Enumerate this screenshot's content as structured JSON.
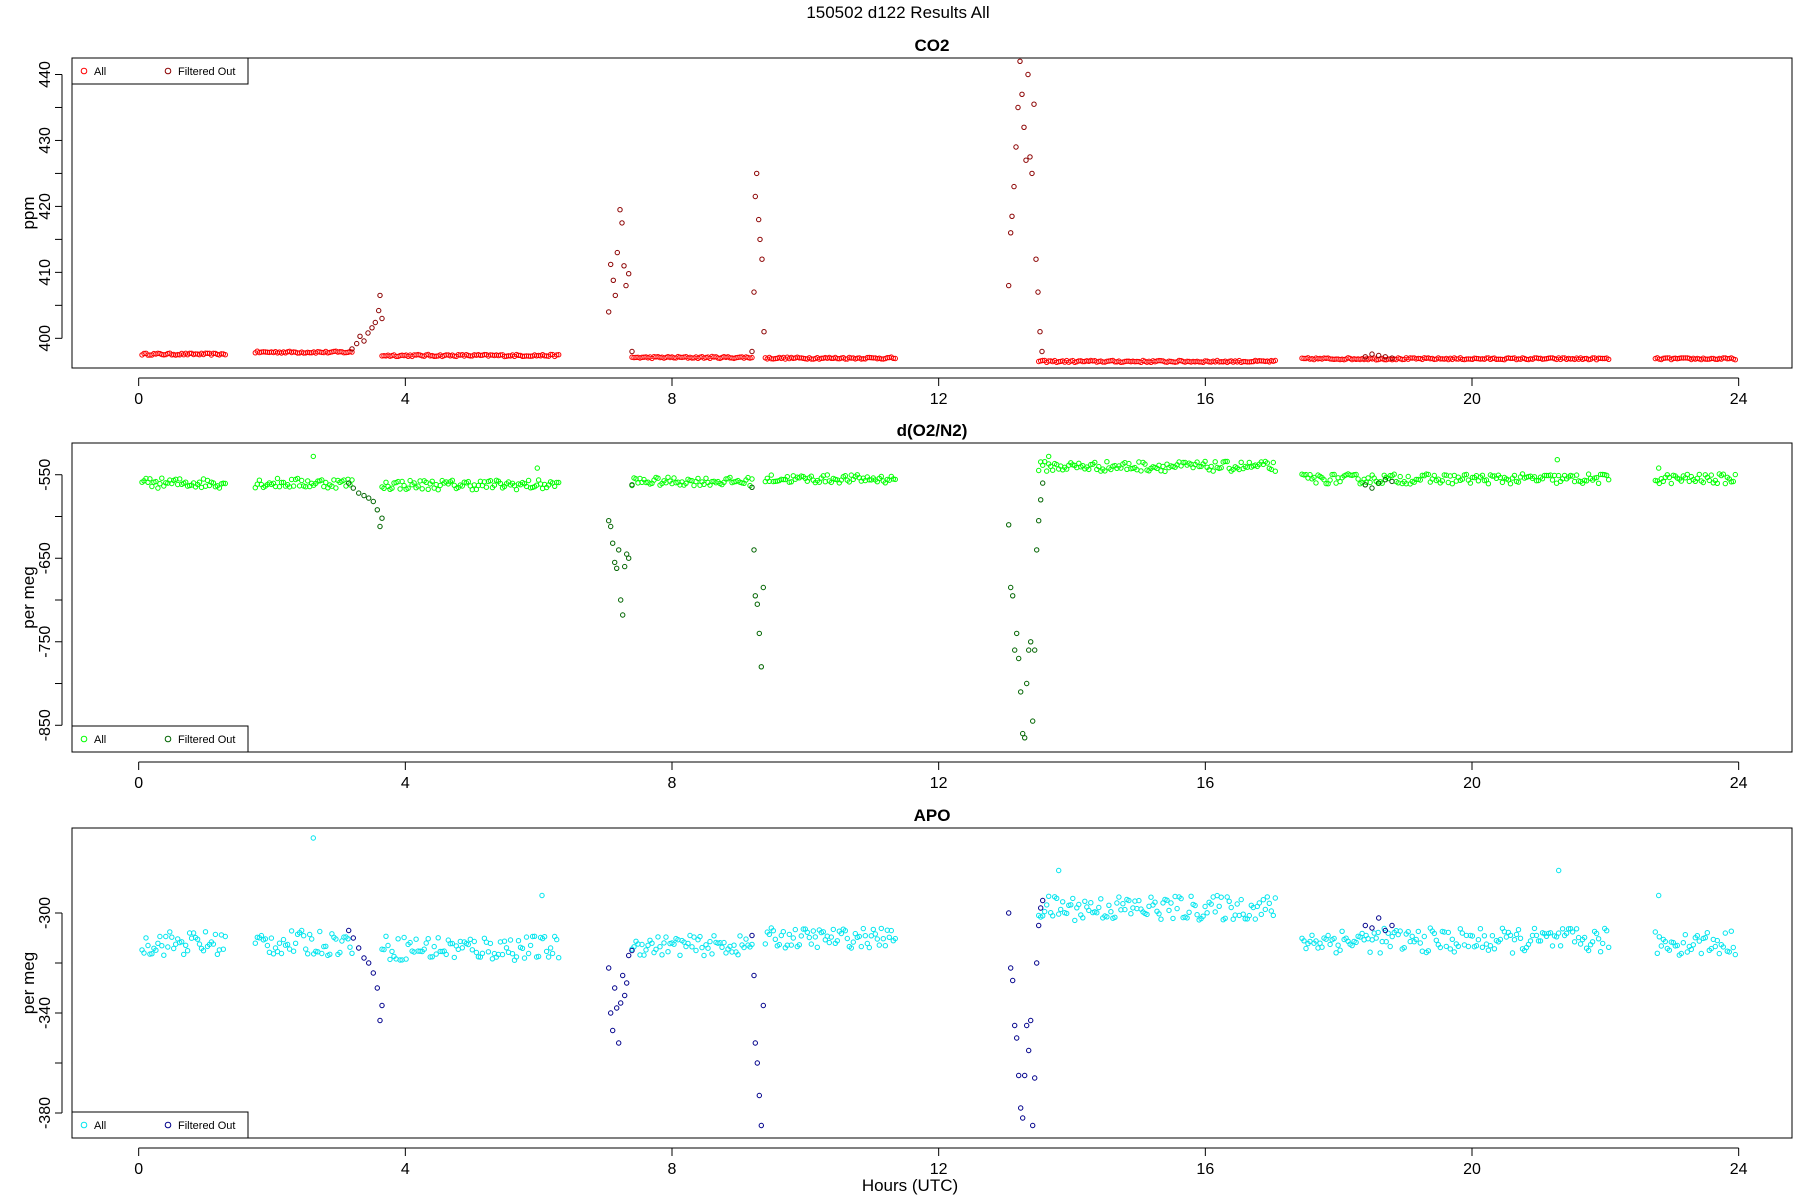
{
  "page_title": "150502   d122   Results All",
  "x_axis_label": "Hours (UTC)",
  "chart_data": [
    {
      "type": "scatter",
      "title": "CO2",
      "ylabel": "ppm",
      "xlim": [
        -1.0,
        24.8
      ],
      "ylim": [
        395.5,
        442.5
      ],
      "x_ticks": [
        0,
        4,
        8,
        12,
        16,
        20,
        24
      ],
      "y_ticks": [
        400,
        410,
        420,
        430,
        440
      ],
      "legend": "top-left",
      "grid": false,
      "series": [
        {
          "name": "All",
          "color": "#ff0000",
          "segments": [
            {
              "x_start": 0.05,
              "x_end": 1.3,
              "y": 397.6,
              "jitter": 0.15
            },
            {
              "x_start": 1.75,
              "x_end": 3.2,
              "y": 397.9,
              "jitter": 0.15
            },
            {
              "x_start": 3.65,
              "x_end": 6.3,
              "y": 397.4,
              "jitter": 0.15
            },
            {
              "x_start": 7.4,
              "x_end": 9.2,
              "y": 397.1,
              "jitter": 0.15
            },
            {
              "x_start": 9.4,
              "x_end": 11.35,
              "y": 397.0,
              "jitter": 0.15
            },
            {
              "x_start": 13.5,
              "x_end": 17.05,
              "y": 396.5,
              "jitter": 0.15
            },
            {
              "x_start": 17.45,
              "x_end": 22.05,
              "y": 396.9,
              "jitter": 0.15
            },
            {
              "x_start": 22.75,
              "x_end": 23.95,
              "y": 396.9,
              "jitter": 0.15
            }
          ]
        },
        {
          "name": "Filtered Out",
          "color": "#8b0000",
          "points": [
            [
              3.2,
              398.4
            ],
            [
              3.27,
              399.2
            ],
            [
              3.32,
              400.3
            ],
            [
              3.38,
              399.6
            ],
            [
              3.44,
              400.8
            ],
            [
              3.5,
              401.6
            ],
            [
              3.55,
              402.4
            ],
            [
              3.6,
              404.2
            ],
            [
              3.62,
              406.5
            ],
            [
              3.65,
              403.0
            ],
            [
              7.05,
              404.0
            ],
            [
              7.08,
              411.2
            ],
            [
              7.12,
              408.8
            ],
            [
              7.15,
              406.5
            ],
            [
              7.18,
              413.0
            ],
            [
              7.22,
              419.5
            ],
            [
              7.25,
              417.5
            ],
            [
              7.28,
              411.0
            ],
            [
              7.31,
              408.0
            ],
            [
              7.35,
              409.8
            ],
            [
              7.4,
              398.0
            ],
            [
              9.2,
              398.0
            ],
            [
              9.23,
              407.0
            ],
            [
              9.25,
              421.5
            ],
            [
              9.27,
              425.0
            ],
            [
              9.3,
              418.0
            ],
            [
              9.32,
              415.0
            ],
            [
              9.35,
              412.0
            ],
            [
              9.38,
              401.0
            ],
            [
              13.05,
              408.0
            ],
            [
              13.08,
              416.0
            ],
            [
              13.1,
              418.5
            ],
            [
              13.13,
              423.0
            ],
            [
              13.16,
              429.0
            ],
            [
              13.19,
              435.0
            ],
            [
              13.22,
              442.0
            ],
            [
              13.25,
              437.0
            ],
            [
              13.28,
              432.0
            ],
            [
              13.31,
              427.0
            ],
            [
              13.34,
              440.0
            ],
            [
              13.37,
              427.5
            ],
            [
              13.4,
              425.0
            ],
            [
              13.43,
              435.5
            ],
            [
              13.46,
              412.0
            ],
            [
              13.49,
              407.0
            ],
            [
              13.52,
              401.0
            ],
            [
              13.55,
              398.0
            ],
            [
              18.4,
              397.2
            ],
            [
              18.5,
              397.6
            ],
            [
              18.6,
              397.4
            ],
            [
              18.7,
              397.2
            ],
            [
              18.8,
              397.0
            ]
          ]
        }
      ]
    },
    {
      "type": "scatter",
      "title": "d(O2/N2)",
      "ylabel": "per meg",
      "xlim": [
        -1.0,
        24.8
      ],
      "ylim": [
        -882,
        -512
      ],
      "x_ticks": [
        0,
        4,
        8,
        12,
        16,
        20,
        24
      ],
      "y_ticks": [
        -550,
        -650,
        -750,
        -850
      ],
      "y_tick_labels_visible": [
        "-550",
        "-650",
        "-750",
        "-850"
      ],
      "legend": "bottom-left",
      "grid": false,
      "series": [
        {
          "name": "All",
          "color": "#00ff00",
          "segments": [
            {
              "x_start": 0.05,
              "x_end": 1.3,
              "y": -560,
              "jitter": 6
            },
            {
              "x_start": 1.75,
              "x_end": 3.2,
              "y": -560,
              "jitter": 6
            },
            {
              "x_start": 3.65,
              "x_end": 6.3,
              "y": -562,
              "jitter": 6
            },
            {
              "x_start": 7.4,
              "x_end": 9.2,
              "y": -558,
              "jitter": 5
            },
            {
              "x_start": 9.4,
              "x_end": 11.35,
              "y": -555,
              "jitter": 5
            },
            {
              "x_start": 13.5,
              "x_end": 17.05,
              "y": -540,
              "jitter": 6
            },
            {
              "x_start": 17.45,
              "x_end": 22.05,
              "y": -555,
              "jitter": 6
            },
            {
              "x_start": 22.75,
              "x_end": 23.95,
              "y": -555,
              "jitter": 6
            }
          ],
          "points": [
            [
              2.62,
              -528
            ],
            [
              5.98,
              -542
            ],
            [
              21.28,
              -532
            ],
            [
              13.65,
              -528
            ],
            [
              22.8,
              -542
            ]
          ]
        },
        {
          "name": "Filtered Out",
          "color": "#006400",
          "points": [
            [
              3.15,
              -560
            ],
            [
              3.22,
              -566
            ],
            [
              3.3,
              -572
            ],
            [
              3.38,
              -575
            ],
            [
              3.45,
              -578
            ],
            [
              3.52,
              -582
            ],
            [
              3.58,
              -592
            ],
            [
              3.62,
              -612
            ],
            [
              3.65,
              -602
            ],
            [
              7.05,
              -605
            ],
            [
              7.08,
              -612
            ],
            [
              7.11,
              -632
            ],
            [
              7.14,
              -655
            ],
            [
              7.17,
              -662
            ],
            [
              7.2,
              -640
            ],
            [
              7.23,
              -700
            ],
            [
              7.26,
              -718
            ],
            [
              7.29,
              -660
            ],
            [
              7.32,
              -645
            ],
            [
              7.35,
              -650
            ],
            [
              7.4,
              -562
            ],
            [
              9.2,
              -565
            ],
            [
              9.23,
              -640
            ],
            [
              9.25,
              -695
            ],
            [
              9.28,
              -705
            ],
            [
              9.31,
              -740
            ],
            [
              9.34,
              -780
            ],
            [
              9.37,
              -685
            ],
            [
              13.05,
              -610
            ],
            [
              13.08,
              -685
            ],
            [
              13.11,
              -695
            ],
            [
              13.14,
              -760
            ],
            [
              13.17,
              -740
            ],
            [
              13.2,
              -770
            ],
            [
              13.23,
              -810
            ],
            [
              13.26,
              -860
            ],
            [
              13.29,
              -865
            ],
            [
              13.32,
              -800
            ],
            [
              13.35,
              -760
            ],
            [
              13.38,
              -750
            ],
            [
              13.41,
              -845
            ],
            [
              13.44,
              -760
            ],
            [
              13.47,
              -640
            ],
            [
              13.5,
              -605
            ],
            [
              13.53,
              -580
            ],
            [
              13.56,
              -560
            ],
            [
              18.4,
              -562
            ],
            [
              18.5,
              -566
            ],
            [
              18.6,
              -560
            ],
            [
              18.7,
              -556
            ],
            [
              18.8,
              -558
            ]
          ]
        }
      ]
    },
    {
      "type": "scatter",
      "title": "APO",
      "ylabel": "per meg",
      "xlim": [
        -1.0,
        24.8
      ],
      "ylim": [
        -390,
        -266
      ],
      "x_ticks": [
        0,
        4,
        8,
        12,
        16,
        20,
        24
      ],
      "y_ticks": [
        -300,
        -340,
        -380
      ],
      "legend": "bottom-left",
      "grid": false,
      "series": [
        {
          "name": "All",
          "color": "#00e5ee",
          "segments": [
            {
              "x_start": 0.05,
              "x_end": 1.3,
              "y": -312,
              "jitter": 5
            },
            {
              "x_start": 1.75,
              "x_end": 3.2,
              "y": -312,
              "jitter": 5
            },
            {
              "x_start": 3.65,
              "x_end": 6.3,
              "y": -314,
              "jitter": 5
            },
            {
              "x_start": 7.4,
              "x_end": 9.2,
              "y": -313,
              "jitter": 4
            },
            {
              "x_start": 9.4,
              "x_end": 11.35,
              "y": -310,
              "jitter": 4
            },
            {
              "x_start": 13.5,
              "x_end": 17.05,
              "y": -298,
              "jitter": 5
            },
            {
              "x_start": 17.45,
              "x_end": 22.05,
              "y": -311,
              "jitter": 5
            },
            {
              "x_start": 22.75,
              "x_end": 23.95,
              "y": -312,
              "jitter": 5
            }
          ],
          "points": [
            [
              2.62,
              -270
            ],
            [
              6.05,
              -293
            ],
            [
              13.8,
              -283
            ],
            [
              21.3,
              -283
            ],
            [
              22.8,
              -293
            ]
          ]
        },
        {
          "name": "Filtered Out",
          "color": "#00008b",
          "points": [
            [
              3.15,
              -307
            ],
            [
              3.22,
              -310
            ],
            [
              3.3,
              -314
            ],
            [
              3.38,
              -318
            ],
            [
              3.45,
              -320
            ],
            [
              3.52,
              -324
            ],
            [
              3.58,
              -330
            ],
            [
              3.62,
              -343
            ],
            [
              3.65,
              -337
            ],
            [
              7.05,
              -322
            ],
            [
              7.08,
              -340
            ],
            [
              7.11,
              -347
            ],
            [
              7.14,
              -330
            ],
            [
              7.17,
              -338
            ],
            [
              7.2,
              -352
            ],
            [
              7.23,
              -336
            ],
            [
              7.26,
              -325
            ],
            [
              7.29,
              -333
            ],
            [
              7.32,
              -328
            ],
            [
              7.35,
              -317
            ],
            [
              7.4,
              -315
            ],
            [
              9.2,
              -309
            ],
            [
              9.23,
              -325
            ],
            [
              9.25,
              -352
            ],
            [
              9.28,
              -360
            ],
            [
              9.31,
              -373
            ],
            [
              9.34,
              -385
            ],
            [
              9.37,
              -337
            ],
            [
              13.05,
              -300
            ],
            [
              13.08,
              -322
            ],
            [
              13.11,
              -327
            ],
            [
              13.14,
              -345
            ],
            [
              13.17,
              -350
            ],
            [
              13.2,
              -365
            ],
            [
              13.23,
              -378
            ],
            [
              13.26,
              -382
            ],
            [
              13.29,
              -365
            ],
            [
              13.32,
              -345
            ],
            [
              13.35,
              -355
            ],
            [
              13.38,
              -343
            ],
            [
              13.41,
              -385
            ],
            [
              13.44,
              -366
            ],
            [
              13.47,
              -320
            ],
            [
              13.5,
              -305
            ],
            [
              13.53,
              -298
            ],
            [
              13.56,
              -295
            ],
            [
              18.4,
              -305
            ],
            [
              18.5,
              -306
            ],
            [
              18.6,
              -302
            ],
            [
              18.7,
              -307
            ],
            [
              18.8,
              -305
            ]
          ]
        }
      ]
    }
  ]
}
